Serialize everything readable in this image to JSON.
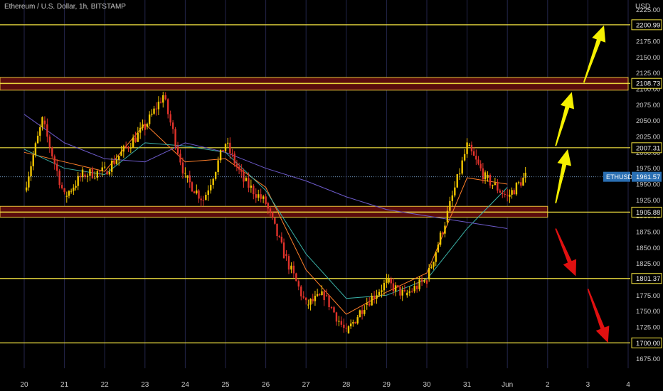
{
  "header": {
    "symbol_title": "Ethereum / U.S. Dollar, 1h, BITSTAMP",
    "currency": "USD"
  },
  "colors": {
    "background": "#000000",
    "grid_vertical": "#23254a",
    "level_line": "#f0e040",
    "zone_fill": "#5a0c0c",
    "zone_border": "#e8c33a",
    "candle_up": "#f2c500",
    "candle_down": "#e0322b",
    "ma_fast": "#ff7f2a",
    "ma_mid": "#3ab0a6",
    "ma_slow": "#6c5ac9",
    "arrow_up": "#f5f000",
    "arrow_down": "#e01010",
    "price_badge": "#2a6fb3",
    "text": "#c8c8c8"
  },
  "chart_data": {
    "type": "candlestick",
    "title": "Ethereum / U.S. Dollar, 1h, BITSTAMP",
    "ylabel": "USD",
    "ylim": [
      1660,
      2240
    ],
    "y_ticks": [
      1675,
      1700,
      1725,
      1750,
      1775,
      1800,
      1825,
      1850,
      1875,
      1900,
      1925,
      1950,
      1975,
      2000,
      2025,
      2050,
      2075,
      2100,
      2125,
      2150,
      2175,
      2200,
      2225
    ],
    "x_ticks": [
      "20",
      "21",
      "22",
      "23",
      "24",
      "25",
      "26",
      "27",
      "28",
      "29",
      "30",
      "31",
      "Jun",
      "2",
      "3",
      "4"
    ],
    "levels": [
      2200.99,
      2108.73,
      2007.31,
      1905.88,
      1801.37,
      1700.0
    ],
    "zones": [
      {
        "from": 2098,
        "to": 2118,
        "extends_to_day": "4"
      },
      {
        "from": 1898,
        "to": 1915,
        "extends_to_day": "2"
      }
    ],
    "current_price": {
      "symbol": "ETHUSD",
      "value": 1961.57
    },
    "key_points": [
      {
        "day": "20",
        "price": 1940
      },
      {
        "day": "20",
        "price": 2050
      },
      {
        "day": "21",
        "price": 1930
      },
      {
        "day": "21",
        "price": 1965
      },
      {
        "day": "22",
        "price": 1970
      },
      {
        "day": "23",
        "price": 2040
      },
      {
        "day": "23",
        "price": 2090
      },
      {
        "day": "24",
        "price": 1960
      },
      {
        "day": "24",
        "price": 1925
      },
      {
        "day": "25",
        "price": 2015
      },
      {
        "day": "25",
        "price": 1955
      },
      {
        "day": "26",
        "price": 1920
      },
      {
        "day": "26",
        "price": 1840
      },
      {
        "day": "27",
        "price": 1760
      },
      {
        "day": "27",
        "price": 1775
      },
      {
        "day": "28",
        "price": 1715
      },
      {
        "day": "28",
        "price": 1760
      },
      {
        "day": "29",
        "price": 1795
      },
      {
        "day": "29",
        "price": 1775
      },
      {
        "day": "30",
        "price": 1800
      },
      {
        "day": "30",
        "price": 1890
      },
      {
        "day": "31",
        "price": 2010
      },
      {
        "day": "31",
        "price": 1960
      },
      {
        "day": "Jun",
        "price": 1930
      },
      {
        "day": "Jun",
        "price": 1962
      }
    ],
    "moving_averages": [
      {
        "color_key": "ma_fast",
        "points": [
          [
            0,
            2000
          ],
          [
            1,
            1985
          ],
          [
            2,
            1970
          ],
          [
            3,
            2045
          ],
          [
            4,
            1985
          ],
          [
            5,
            1990
          ],
          [
            6,
            1945
          ],
          [
            7,
            1815
          ],
          [
            8,
            1745
          ],
          [
            9,
            1780
          ],
          [
            10,
            1810
          ],
          [
            11,
            1960
          ],
          [
            12,
            1950
          ]
        ]
      },
      {
        "color_key": "ma_mid",
        "points": [
          [
            0,
            2005
          ],
          [
            1,
            1975
          ],
          [
            2,
            1965
          ],
          [
            3,
            2015
          ],
          [
            4,
            2010
          ],
          [
            5,
            2000
          ],
          [
            6,
            1940
          ],
          [
            7,
            1840
          ],
          [
            8,
            1770
          ],
          [
            9,
            1775
          ],
          [
            10,
            1800
          ],
          [
            11,
            1880
          ],
          [
            12,
            1945
          ]
        ]
      },
      {
        "color_key": "ma_slow",
        "points": [
          [
            0,
            2060
          ],
          [
            1,
            2015
          ],
          [
            2,
            1990
          ],
          [
            3,
            1985
          ],
          [
            4,
            2015
          ],
          [
            5,
            2000
          ],
          [
            6,
            1975
          ],
          [
            7,
            1955
          ],
          [
            8,
            1930
          ],
          [
            9,
            1910
          ],
          [
            10,
            1900
          ],
          [
            11,
            1890
          ],
          [
            12,
            1880
          ]
        ]
      }
    ],
    "arrows": [
      {
        "direction": "up",
        "from": {
          "day": "2.2",
          "price": 1920
        },
        "to": {
          "day": "2.5",
          "price": 2005
        }
      },
      {
        "direction": "up",
        "from": {
          "day": "2.2",
          "price": 2010
        },
        "to": {
          "day": "2.6",
          "price": 2095
        }
      },
      {
        "direction": "up",
        "from": {
          "day": "2.9",
          "price": 2110
        },
        "to": {
          "day": "3.4",
          "price": 2200
        }
      },
      {
        "direction": "down",
        "from": {
          "day": "2.2",
          "price": 1880
        },
        "to": {
          "day": "2.7",
          "price": 1805
        }
      },
      {
        "direction": "down",
        "from": {
          "day": "3.0",
          "price": 1785
        },
        "to": {
          "day": "3.5",
          "price": 1700
        }
      }
    ]
  }
}
